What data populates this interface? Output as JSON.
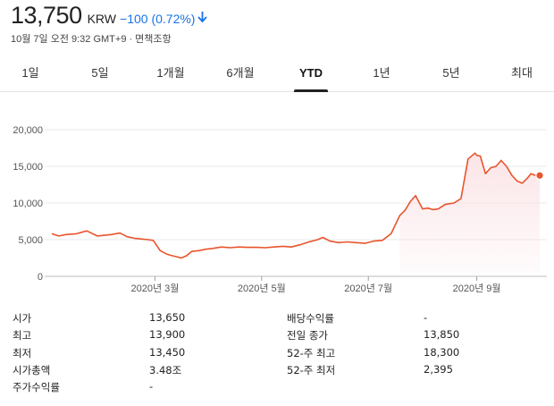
{
  "header": {
    "price": "13,750",
    "currency": "KRW",
    "change": "−100 (0.72%)",
    "change_color": "#1a73e8",
    "timestamp": "10월 7일 오전 9:32 GMT+9",
    "separator": "·",
    "disclaimer": "면책조항"
  },
  "tabs": [
    {
      "label": "1일",
      "active": false
    },
    {
      "label": "5일",
      "active": false
    },
    {
      "label": "1개월",
      "active": false
    },
    {
      "label": "6개월",
      "active": false
    },
    {
      "label": "YTD",
      "active": true
    },
    {
      "label": "1년",
      "active": false
    },
    {
      "label": "5년",
      "active": false
    },
    {
      "label": "최대",
      "active": false
    }
  ],
  "chart_data": {
    "type": "area",
    "series": [
      {
        "color": "#e8542c",
        "fill_color": "#fbe3e6",
        "x": [
          "2020-01-02",
          "2020-01-06",
          "2020-01-10",
          "2020-01-16",
          "2020-01-22",
          "2020-01-28",
          "2020-02-01",
          "2020-02-05",
          "2020-02-10",
          "2020-02-14",
          "2020-02-18",
          "2020-02-22",
          "2020-02-26",
          "2020-02-29",
          "2020-03-04",
          "2020-03-08",
          "2020-03-11",
          "2020-03-13",
          "2020-03-16",
          "2020-03-19",
          "2020-03-22",
          "2020-03-26",
          "2020-03-30",
          "2020-04-03",
          "2020-04-08",
          "2020-04-13",
          "2020-04-18",
          "2020-04-23",
          "2020-04-28",
          "2020-05-03",
          "2020-05-08",
          "2020-05-13",
          "2020-05-18",
          "2020-05-23",
          "2020-05-28",
          "2020-06-02",
          "2020-06-05",
          "2020-06-09",
          "2020-06-14",
          "2020-06-19",
          "2020-06-24",
          "2020-06-29",
          "2020-07-04",
          "2020-07-09",
          "2020-07-14",
          "2020-07-19",
          "2020-07-22",
          "2020-07-25",
          "2020-07-28",
          "2020-08-01",
          "2020-08-04",
          "2020-08-07",
          "2020-08-10",
          "2020-08-14",
          "2020-08-19",
          "2020-08-23",
          "2020-08-27",
          "2020-08-31",
          "2020-09-01",
          "2020-09-03",
          "2020-09-06",
          "2020-09-09",
          "2020-09-12",
          "2020-09-15",
          "2020-09-18",
          "2020-09-21",
          "2020-09-24",
          "2020-09-27",
          "2020-09-30",
          "2020-10-02",
          "2020-10-04",
          "2020-10-07"
        ],
        "values": [
          5800,
          5500,
          5700,
          5800,
          6200,
          5500,
          5600,
          5700,
          5900,
          5400,
          5200,
          5100,
          5000,
          4900,
          3500,
          3000,
          2800,
          2700,
          2500,
          2800,
          3400,
          3500,
          3700,
          3800,
          4000,
          3900,
          4000,
          3950,
          3950,
          3900,
          4000,
          4100,
          4000,
          4300,
          4700,
          5000,
          5300,
          4800,
          4600,
          4700,
          4600,
          4500,
          4800,
          4900,
          5800,
          8300,
          9000,
          10200,
          11000,
          9200,
          9300,
          9100,
          9200,
          9800,
          10000,
          10600,
          16000,
          16800,
          16500,
          16400,
          14000,
          14800,
          15000,
          15800,
          15000,
          13800,
          13000,
          12700,
          13400,
          14000,
          13800,
          13750
        ]
      }
    ],
    "x_ticks": [
      {
        "date": "2020-03-01",
        "label": "2020년 3월"
      },
      {
        "date": "2020-05-01",
        "label": "2020년 5월"
      },
      {
        "date": "2020-07-01",
        "label": "2020년 7월"
      },
      {
        "date": "2020-09-01",
        "label": "2020년 9월"
      }
    ],
    "y_ticks": [
      0,
      5000,
      10000,
      15000,
      20000
    ],
    "y_tick_labels": [
      "0",
      "5,000",
      "10,000",
      "15,000",
      "20,000"
    ],
    "ylim": [
      0,
      20000
    ],
    "x_range": [
      "2020-01-02",
      "2020-10-07"
    ],
    "grid": true,
    "last_point_marker": true
  },
  "stats": {
    "left": [
      {
        "label": "시가",
        "value": "13,650"
      },
      {
        "label": "최고",
        "value": "13,900"
      },
      {
        "label": "최저",
        "value": "13,450"
      },
      {
        "label": "시가총액",
        "value": "3.48조"
      },
      {
        "label": "주가수익률",
        "value": "-"
      }
    ],
    "right": [
      {
        "label": "배당수익률",
        "value": "-"
      },
      {
        "label": "전일 종가",
        "value": "13,850"
      },
      {
        "label": "52-주 최고",
        "value": "18,300"
      },
      {
        "label": "52-주 최저",
        "value": "2,395"
      }
    ]
  }
}
